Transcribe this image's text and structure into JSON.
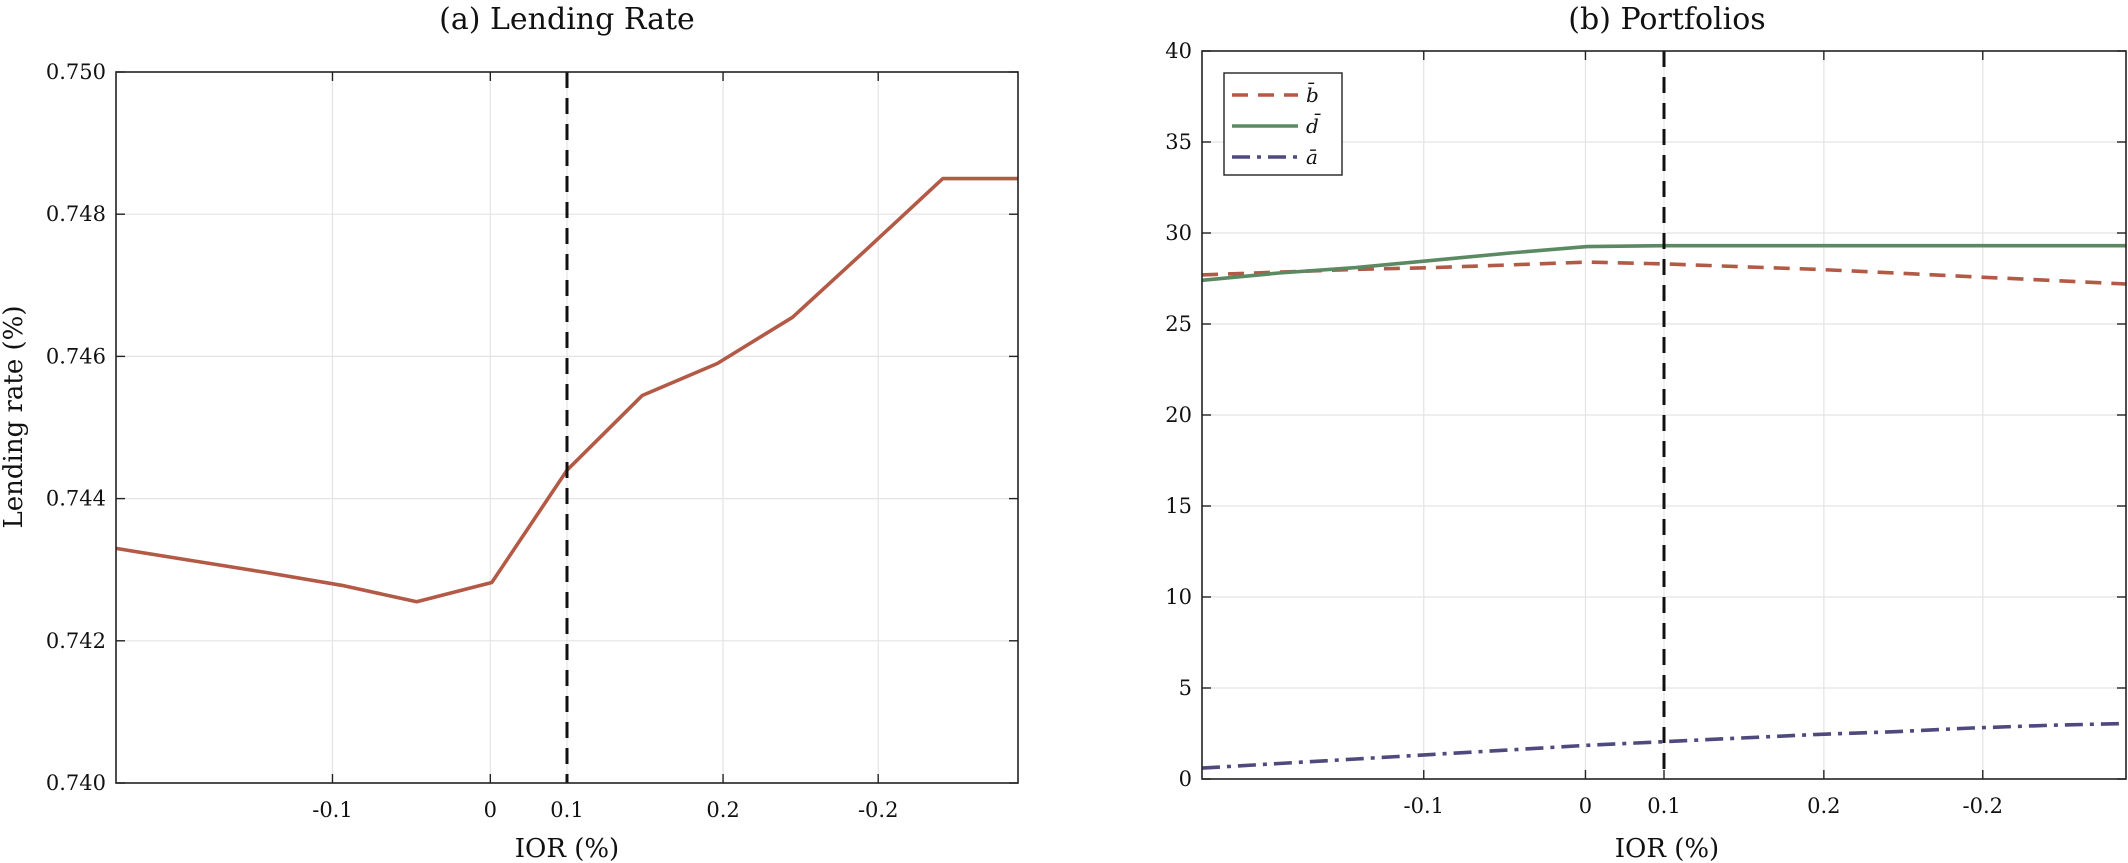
{
  "chart_data": [
    {
      "type": "line",
      "title": "(a) Lending Rate",
      "xlabel": "IOR (%)",
      "ylabel": "Lending rate (%)",
      "xlim": [
        0.25,
        -0.35
      ],
      "ylim": [
        0.74,
        0.75
      ],
      "xticks": [
        "-0.1",
        "0",
        "0.1",
        "0.2",
        "-0.2"
      ],
      "yticks": [
        "0.740",
        "0.742",
        "0.744",
        "0.746",
        "0.748",
        "0.750"
      ],
      "grid": true,
      "vline": 0.1,
      "series": [
        {
          "color": "#b35a47",
          "style": "solid",
          "x": [
            0.25,
            0.2,
            0.15,
            0.1,
            0.05,
            0.0,
            -0.05,
            -0.1,
            -0.15,
            -0.2,
            -0.25,
            -0.3,
            -0.35
          ],
          "y": [
            0.7433,
            0.74313,
            0.74296,
            0.74278,
            0.74255,
            0.74282,
            0.7444,
            0.74545,
            0.7459,
            0.74655,
            0.74752,
            0.7485,
            0.7485
          ]
        }
      ]
    },
    {
      "type": "line",
      "title": "(b) Portfolios",
      "xlabel": "IOR (%)",
      "ylabel": "",
      "xlim": [
        0.25,
        -0.35
      ],
      "ylim": [
        0,
        40
      ],
      "xticks": [
        "-0.1",
        "0",
        "0.1",
        "0.2",
        "-0.2"
      ],
      "yticks": [
        "0",
        "5",
        "10",
        "15",
        "20",
        "25",
        "30",
        "35",
        "40"
      ],
      "grid": true,
      "vline": 0.1,
      "legend_position": "top-left",
      "series": [
        {
          "name": "b̄",
          "color": "#b35a47",
          "style": "dashed",
          "x": [
            0.25,
            0.2,
            0.15,
            0.1,
            0.05,
            0.0,
            -0.05,
            -0.1,
            -0.15,
            -0.2,
            -0.25,
            -0.3,
            -0.35
          ],
          "y": [
            27.7,
            27.85,
            28.0,
            28.1,
            28.25,
            28.4,
            28.3,
            28.15,
            28.0,
            27.8,
            27.6,
            27.4,
            27.2
          ]
        },
        {
          "name": "d̄",
          "color": "#5b8a62",
          "style": "solid",
          "x": [
            0.25,
            0.2,
            0.15,
            0.1,
            0.05,
            0.0,
            -0.05,
            -0.1,
            -0.15,
            -0.2,
            -0.25,
            -0.3,
            -0.35
          ],
          "y": [
            27.4,
            27.8,
            28.1,
            28.5,
            28.9,
            29.25,
            29.3,
            29.3,
            29.3,
            29.3,
            29.3,
            29.3,
            29.3
          ]
        },
        {
          "name": "ā",
          "color": "#4e4a7e",
          "style": "dashdot",
          "x": [
            0.25,
            0.2,
            0.15,
            0.1,
            0.05,
            0.0,
            -0.05,
            -0.1,
            -0.15,
            -0.2,
            -0.25,
            -0.3,
            -0.35
          ],
          "y": [
            0.6,
            0.85,
            1.1,
            1.35,
            1.6,
            1.85,
            2.05,
            2.25,
            2.45,
            2.6,
            2.8,
            2.95,
            3.05
          ]
        }
      ]
    }
  ]
}
